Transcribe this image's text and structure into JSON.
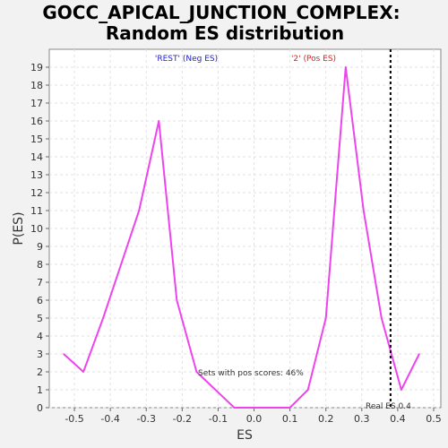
{
  "chart_data": {
    "type": "line",
    "title": "GOCC_APICAL_JUNCTION_COMPLEX:",
    "subtitle": "Random ES distribution",
    "xlabel": "ES",
    "ylabel": "P(ES)",
    "xlim": [
      -0.57,
      0.52
    ],
    "ylim": [
      0,
      20
    ],
    "x_ticks": [
      "-0.5",
      "-0.4",
      "-0.3",
      "-0.2",
      "-0.1",
      "0.0",
      "0.1",
      "0.2",
      "0.3",
      "0.4",
      "0.5"
    ],
    "x_tick_values": [
      -0.5,
      -0.4,
      -0.3,
      -0.2,
      -0.1,
      0.0,
      0.1,
      0.2,
      0.3,
      0.4,
      0.5
    ],
    "y_ticks": [
      "0",
      "1",
      "2",
      "3",
      "4",
      "5",
      "6",
      "7",
      "8",
      "9",
      "10",
      "11",
      "12",
      "13",
      "14",
      "15",
      "16",
      "17",
      "18",
      "19"
    ],
    "y_tick_values": [
      0,
      1,
      2,
      3,
      4,
      5,
      6,
      7,
      8,
      9,
      10,
      11,
      12,
      13,
      14,
      15,
      16,
      17,
      18,
      19
    ],
    "grid": true,
    "series": [
      {
        "color": "#ee44ee",
        "points": [
          [
            -0.53,
            3
          ],
          [
            -0.475,
            2
          ],
          [
            -0.42,
            5
          ],
          [
            -0.32,
            11
          ],
          [
            -0.265,
            16
          ],
          [
            -0.215,
            6
          ],
          [
            -0.16,
            2
          ],
          [
            -0.055,
            0
          ],
          [
            0.0,
            0
          ],
          [
            0.1,
            0
          ],
          [
            0.15,
            1
          ],
          [
            0.2,
            5
          ],
          [
            0.255,
            19
          ],
          [
            0.305,
            11
          ],
          [
            0.355,
            5
          ],
          [
            0.41,
            1
          ],
          [
            0.46,
            3
          ]
        ]
      }
    ],
    "real_es": {
      "value": 0.38,
      "label": "Real ES 0.4"
    },
    "labels": {
      "neg": {
        "text": "'REST' (Neg ES)",
        "color": "#2222cc"
      },
      "pos": {
        "text": "'2' (Pos ES)",
        "color": "#dd2222"
      },
      "sets_pos": "Sets with pos scores: 46%"
    }
  }
}
